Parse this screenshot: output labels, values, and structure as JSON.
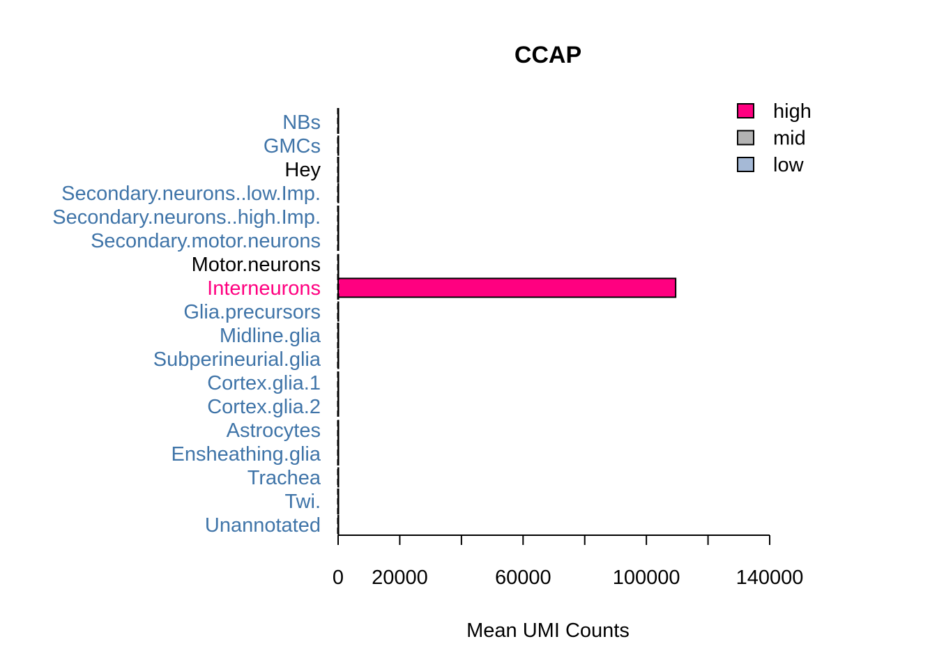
{
  "chart_data": {
    "type": "bar",
    "orientation": "horizontal",
    "title": "CCAP",
    "xlabel": "Mean UMI Counts",
    "ylabel": "",
    "xlim": [
      0,
      140000
    ],
    "x_ticks": [
      0,
      20000,
      40000,
      60000,
      80000,
      100000,
      120000,
      140000
    ],
    "x_tick_labels": [
      "0",
      "20000",
      "",
      "60000",
      "",
      "100000",
      "",
      "140000"
    ],
    "categories": [
      "NBs",
      "GMCs",
      "Hey",
      "Secondary.neurons..low.Imp.",
      "Secondary.neurons..high.Imp.",
      "Secondary.motor.neurons",
      "Motor.neurons",
      "Interneurons",
      "Glia.precursors",
      "Midline.glia",
      "Subperineurial.glia",
      "Cortex.glia.1",
      "Cortex.glia.2",
      "Astrocytes",
      "Ensheathing.glia",
      "Trachea",
      "Twi.",
      "Unannotated"
    ],
    "values": [
      0,
      0,
      0,
      0,
      0,
      0,
      0,
      109500,
      0,
      0,
      0,
      0,
      0,
      0,
      0,
      0,
      0,
      0
    ],
    "levels": [
      "low",
      "low",
      "",
      "low",
      "low",
      "low",
      "",
      "high",
      "low",
      "low",
      "low",
      "low",
      "low",
      "low",
      "low",
      "low",
      "low",
      "low"
    ],
    "label_colors": {
      "high": "#ff0080",
      "low": "#3f74a8",
      "none": "#000000"
    },
    "legend": {
      "position": "top-right",
      "entries": [
        {
          "label": "high",
          "color": "#ff0080"
        },
        {
          "label": "mid",
          "color": "#b3b3b3"
        },
        {
          "label": "low",
          "color": "#a5b9d6"
        }
      ]
    },
    "grid": false
  }
}
